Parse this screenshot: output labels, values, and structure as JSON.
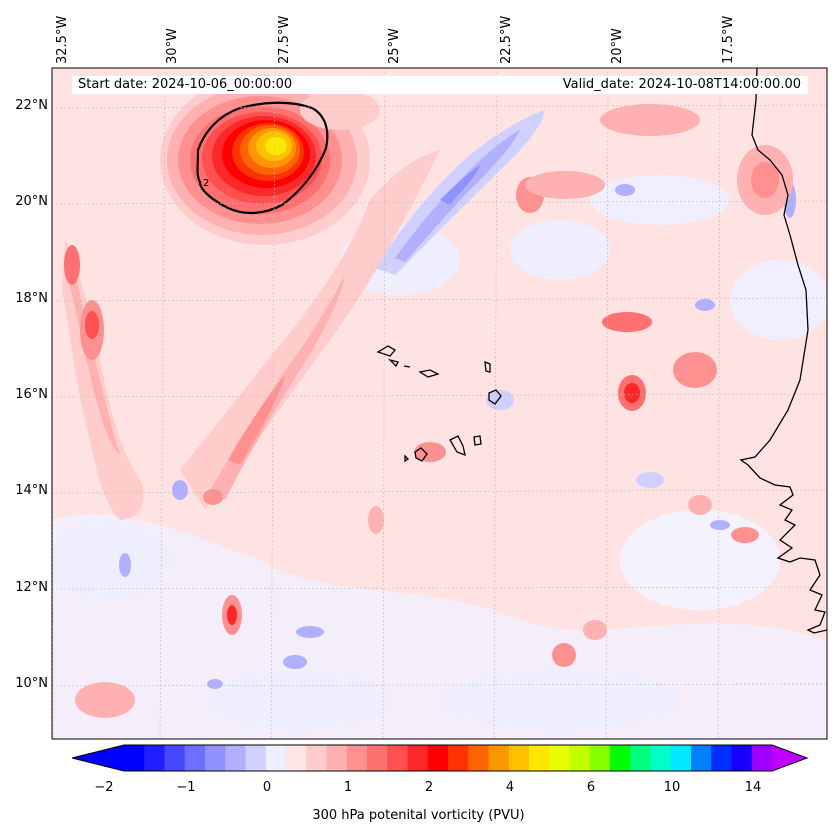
{
  "header": {
    "start_date": "Start date: 2024-10-06_00:00:00",
    "valid_date": "Valid_date: 2024-10-08T14:00:00.00"
  },
  "axes": {
    "longitude_labels": [
      "32.5°W",
      "30°W",
      "27.5°W",
      "25°W",
      "22.5°W",
      "20°W",
      "17.5°W"
    ],
    "latitude_labels": [
      "22°N",
      "20°N",
      "18°N",
      "16°N",
      "14°N",
      "12°N",
      "10°N"
    ]
  },
  "colorbar": {
    "label": "300 hPa potenital vorticity (PVU)",
    "tick_labels": [
      "−2",
      "−1",
      "0",
      "1",
      "2",
      "4",
      "6",
      "10",
      "14"
    ],
    "colors": [
      "#0000ff",
      "#2020ff",
      "#4848ff",
      "#6e6eff",
      "#9090ff",
      "#b0b0ff",
      "#d0d0ff",
      "#eeeeff",
      "#ffe6e6",
      "#ffcccc",
      "#ffb0b0",
      "#ff9090",
      "#ff7070",
      "#ff5050",
      "#ff2828",
      "#ff0000",
      "#ff3200",
      "#ff6400",
      "#ff9600",
      "#ffc000",
      "#ffe800",
      "#e8ff00",
      "#c0ff00",
      "#88ff00",
      "#00ff00",
      "#00ff80",
      "#00ffc8",
      "#00e8ff",
      "#0080ff",
      "#0030ff",
      "#1800ff",
      "#a000ff"
    ],
    "under_color": "#0000ff",
    "over_color": "#c000ff"
  },
  "map": {
    "background": "#ffe3e3",
    "contour_label": "2"
  }
}
